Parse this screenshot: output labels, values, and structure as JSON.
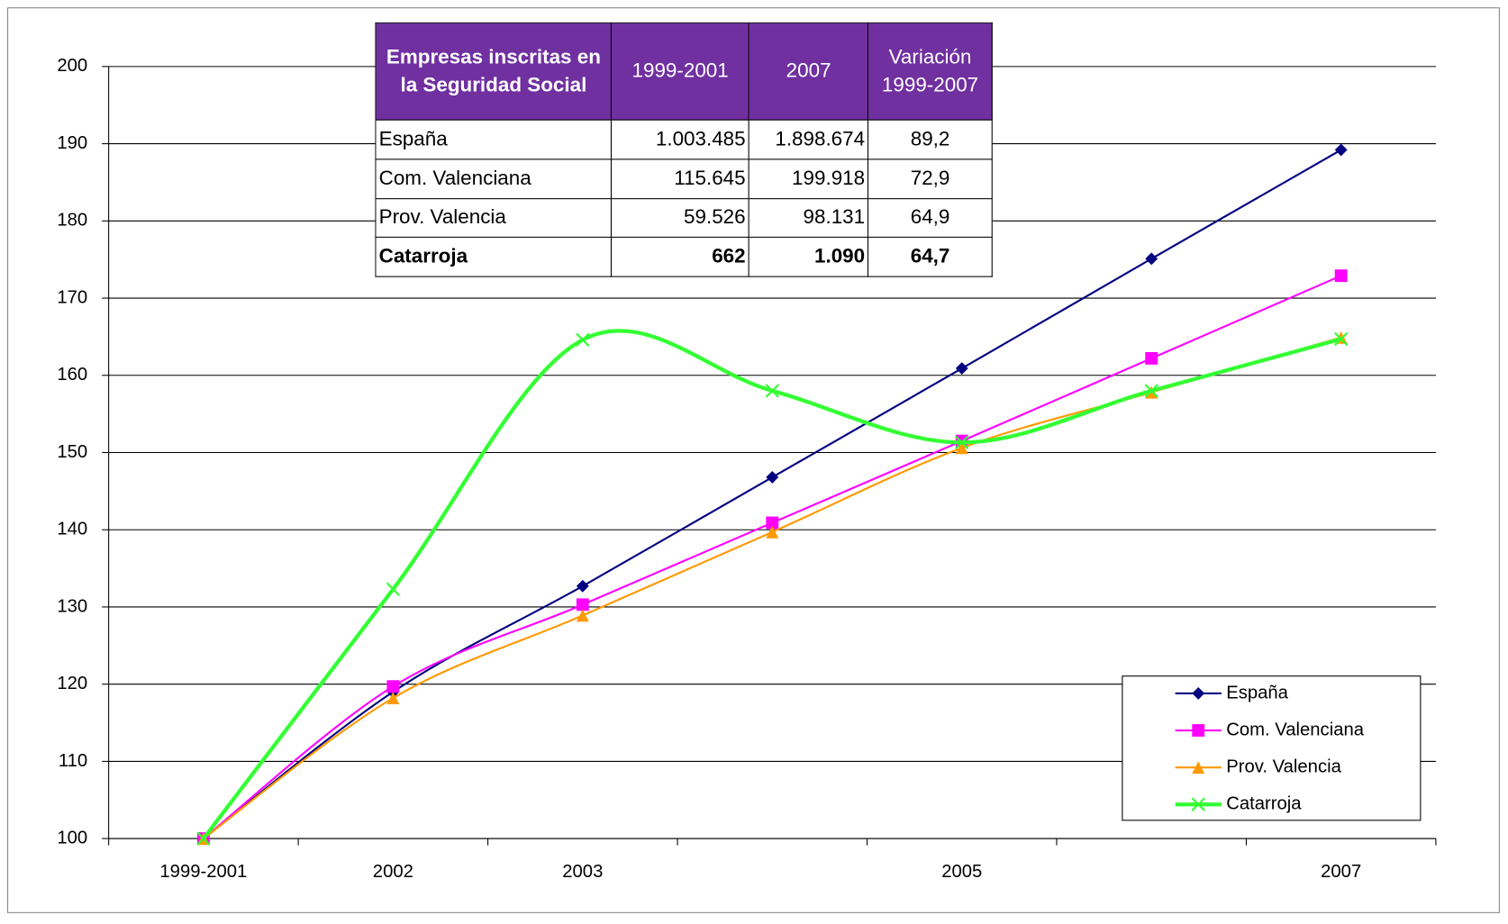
{
  "chart_data": {
    "type": "line",
    "categories": [
      "1999-2001",
      "2002",
      "2003",
      null,
      "2005",
      null,
      "2007"
    ],
    "series": [
      {
        "name": "España",
        "color": "#000080",
        "marker": "diamond",
        "values": [
          100,
          119,
          132.7,
          146.8,
          160.9,
          175.1,
          189.2
        ]
      },
      {
        "name": "Com. Valenciana",
        "color": "#ff00ff",
        "marker": "square",
        "values": [
          100,
          119.7,
          130.3,
          140.9,
          151.5,
          162.2,
          172.9
        ]
      },
      {
        "name": "Prov. Valencia",
        "color": "#ff9900",
        "marker": "triangle",
        "values": [
          100,
          118.2,
          128.9,
          139.7,
          150.6,
          157.8,
          164.9
        ]
      },
      {
        "name": "Catarroja",
        "color": "#33ff33",
        "marker": "x",
        "values": [
          100,
          132.3,
          164.6,
          158,
          151.3,
          158,
          164.7
        ]
      }
    ],
    "ylim": [
      100,
      200
    ],
    "yticks": [
      100,
      110,
      120,
      130,
      140,
      150,
      160,
      170,
      180,
      190,
      200
    ],
    "grid": true,
    "smooth": true,
    "legend": "lower right"
  },
  "table": {
    "header": [
      "Empresas inscritas en la Seguridad Social",
      "1999-2001",
      "2007",
      "Variación 1999-2007"
    ],
    "rows": [
      [
        "España",
        "1.003.485",
        "1.898.674",
        "89,2"
      ],
      [
        "Com. Valenciana",
        "115.645",
        "199.918",
        "72,9"
      ],
      [
        "Prov. Valencia",
        "59.526",
        "98.131",
        "64,9"
      ],
      [
        "Catarroja",
        "662",
        "1.090",
        "64,7"
      ]
    ]
  }
}
